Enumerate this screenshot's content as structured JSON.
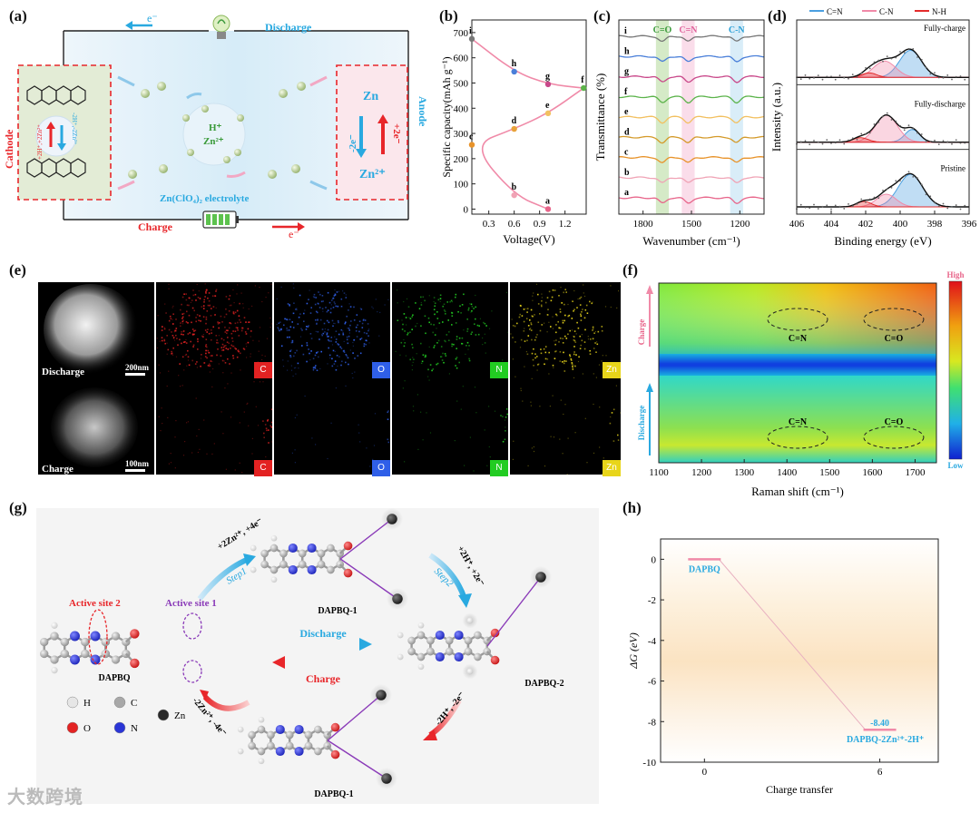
{
  "panel_letters": [
    "(a)",
    "(b)",
    "(c)",
    "(d)",
    "(e)",
    "(f)",
    "(g)",
    "(h)"
  ],
  "a": {
    "electron_top": "e⁻",
    "discharge": "Discharge",
    "charge": "Charge",
    "electron_bottom": "e⁻",
    "cathode": "Cathode",
    "anode": "Anode",
    "zn": "Zn",
    "zn2": "Zn²⁺",
    "minus2e": "-2e⁻",
    "plus2e": "+2e⁻",
    "ions_h": "H⁺",
    "ions_zn": "Zn²⁺",
    "electrolyte": "Zn(ClO₄)₂ electrolyte",
    "cathode_rxn_left": "+2H⁺,+2Zn²⁺",
    "cathode_rxn_right": "-2H⁺,-2Zn²⁺",
    "colors": {
      "discharge": "#29a9e0",
      "charge": "#e8262a",
      "cathode_bg": "#e3ecd6",
      "anode_bg": "#fbe7ec"
    }
  },
  "chart_data": [
    {
      "panel": "b",
      "type": "line",
      "xlabel": "Voltage(V)",
      "ylabel": "Specific capacity(mAh g⁻¹)",
      "xlim": [
        0.1,
        1.45
      ],
      "ylim": [
        -20,
        750
      ],
      "xticks": [
        "0.3",
        "0.6",
        "0.9",
        "1.2"
      ],
      "yticks": [
        "0",
        "100",
        "200",
        "300",
        "400",
        "500",
        "600",
        "700"
      ],
      "points": [
        {
          "label": "a",
          "x": 1.0,
          "y": 0,
          "color": "#e8658a"
        },
        {
          "label": "b",
          "x": 0.6,
          "y": 55,
          "color": "#f0a3b5"
        },
        {
          "label": "c",
          "x": 0.1,
          "y": 255,
          "color": "#e8932a"
        },
        {
          "label": "d",
          "x": 0.6,
          "y": 318,
          "color": "#e8a23a"
        },
        {
          "label": "e",
          "x": 1.0,
          "y": 380,
          "color": "#f2c060"
        },
        {
          "label": "f",
          "x": 1.42,
          "y": 480,
          "color": "#5bb34a"
        },
        {
          "label": "g",
          "x": 1.0,
          "y": 495,
          "color": "#c9488a"
        },
        {
          "label": "h",
          "x": 0.6,
          "y": 545,
          "color": "#4a7fd9"
        },
        {
          "label": "i",
          "x": 0.1,
          "y": 675,
          "color": "#777777"
        }
      ]
    },
    {
      "panel": "c",
      "type": "line",
      "xlabel": "Wavenumber (cm⁻¹)",
      "ylabel": "Transmittance (%)",
      "xlim": [
        1950,
        1050
      ],
      "xticks": [
        "1800",
        "1500",
        "1200"
      ],
      "bands": [
        {
          "name": "C=O",
          "from": 1720,
          "to": 1640,
          "color": "#b9dca2",
          "text_color": "#3a9a3a"
        },
        {
          "name": "C=N",
          "from": 1560,
          "to": 1480,
          "color": "#f6c7dc",
          "text_color": "#e0609a"
        },
        {
          "name": "C-N",
          "from": 1260,
          "to": 1180,
          "color": "#bfe1f3",
          "text_color": "#2a9fd6"
        }
      ],
      "series": [
        {
          "name": "a",
          "color": "#e8658a"
        },
        {
          "name": "b",
          "color": "#f0a3b5"
        },
        {
          "name": "c",
          "color": "#e8932a"
        },
        {
          "name": "d",
          "color": "#d49a2a"
        },
        {
          "name": "e",
          "color": "#f2c060"
        },
        {
          "name": "f",
          "color": "#5bb34a"
        },
        {
          "name": "g",
          "color": "#c9488a"
        },
        {
          "name": "h",
          "color": "#4a7fd9"
        },
        {
          "name": "i",
          "color": "#777777"
        }
      ]
    },
    {
      "panel": "d",
      "type": "line",
      "xlabel": "Binding energy (eV)",
      "ylabel": "Intensity (a.u.)",
      "xlim": [
        406,
        396
      ],
      "xticks": [
        "406",
        "404",
        "402",
        "400",
        "398",
        "396"
      ],
      "legend": [
        {
          "name": "C=N",
          "color": "#4a9fe0"
        },
        {
          "name": "C-N",
          "color": "#f08aa8"
        },
        {
          "name": "N-H",
          "color": "#e32b2b"
        }
      ],
      "states": [
        "Fully-charge",
        "Fully-discharge",
        "Pristine"
      ]
    },
    {
      "panel": "f",
      "type": "heatmap",
      "xlabel": "Raman shift (cm⁻¹)",
      "xlim": [
        1100,
        1750
      ],
      "xticks": [
        "1100",
        "1200",
        "1300",
        "1400",
        "1500",
        "1600",
        "1700"
      ],
      "colorbar": {
        "high": "High",
        "low": "Low"
      },
      "charge_label": "Charge",
      "discharge_label": "Discharge",
      "annotations": [
        "C=N",
        "C=O",
        "C=N",
        "C=O"
      ]
    },
    {
      "panel": "h",
      "type": "line",
      "xlabel": "Charge transfer",
      "ylabel": "ΔG (eV)",
      "ylim": [
        -10,
        1
      ],
      "yticks": [
        "0",
        "-2",
        "-4",
        "-6",
        "-8",
        "-10"
      ],
      "xticks": [
        "0",
        "6"
      ],
      "levels": [
        {
          "x": 0,
          "y": 0,
          "label": "DAPBQ"
        },
        {
          "x": 6,
          "y": -8.4,
          "label": "DAPBQ-2Zn²⁺-2H⁺",
          "value": "-8.40"
        }
      ]
    }
  ],
  "e": {
    "row_labels": [
      "Discharge",
      "Charge"
    ],
    "scale_bars": [
      "200nm",
      "100nm"
    ],
    "elements": [
      {
        "symbol": "C",
        "color": "#e32222"
      },
      {
        "symbol": "O",
        "color": "#2f5fe8"
      },
      {
        "symbol": "N",
        "color": "#22cc22"
      },
      {
        "symbol": "Zn",
        "color": "#e8d51a"
      }
    ]
  },
  "g": {
    "molecules": [
      "DAPBQ",
      "DAPBQ-1",
      "DAPBQ-2",
      "DAPBQ-1"
    ],
    "active_site_1": "Active site 1",
    "active_site_2": "Active site 2",
    "step1": "Step1",
    "step2": "Step2",
    "step1_rxn": "+2Zn²⁺, +4e⁻",
    "step2_rxn": "+2H⁺, +2e⁻",
    "back1_rxn": "-2Zn²⁺, -4e⁻",
    "back2_rxn": "-2H⁺, -2e⁻",
    "discharge": "Discharge",
    "charge": "Charge",
    "legend": [
      {
        "symbol": "H",
        "color": "#e6e6e6"
      },
      {
        "symbol": "C",
        "color": "#a8a8a8"
      },
      {
        "symbol": "O",
        "color": "#e32222"
      },
      {
        "symbol": "N",
        "color": "#2a35d6"
      },
      {
        "symbol": "Zn",
        "color": "#2a2a2a"
      }
    ]
  },
  "watermark": "大数跨境"
}
